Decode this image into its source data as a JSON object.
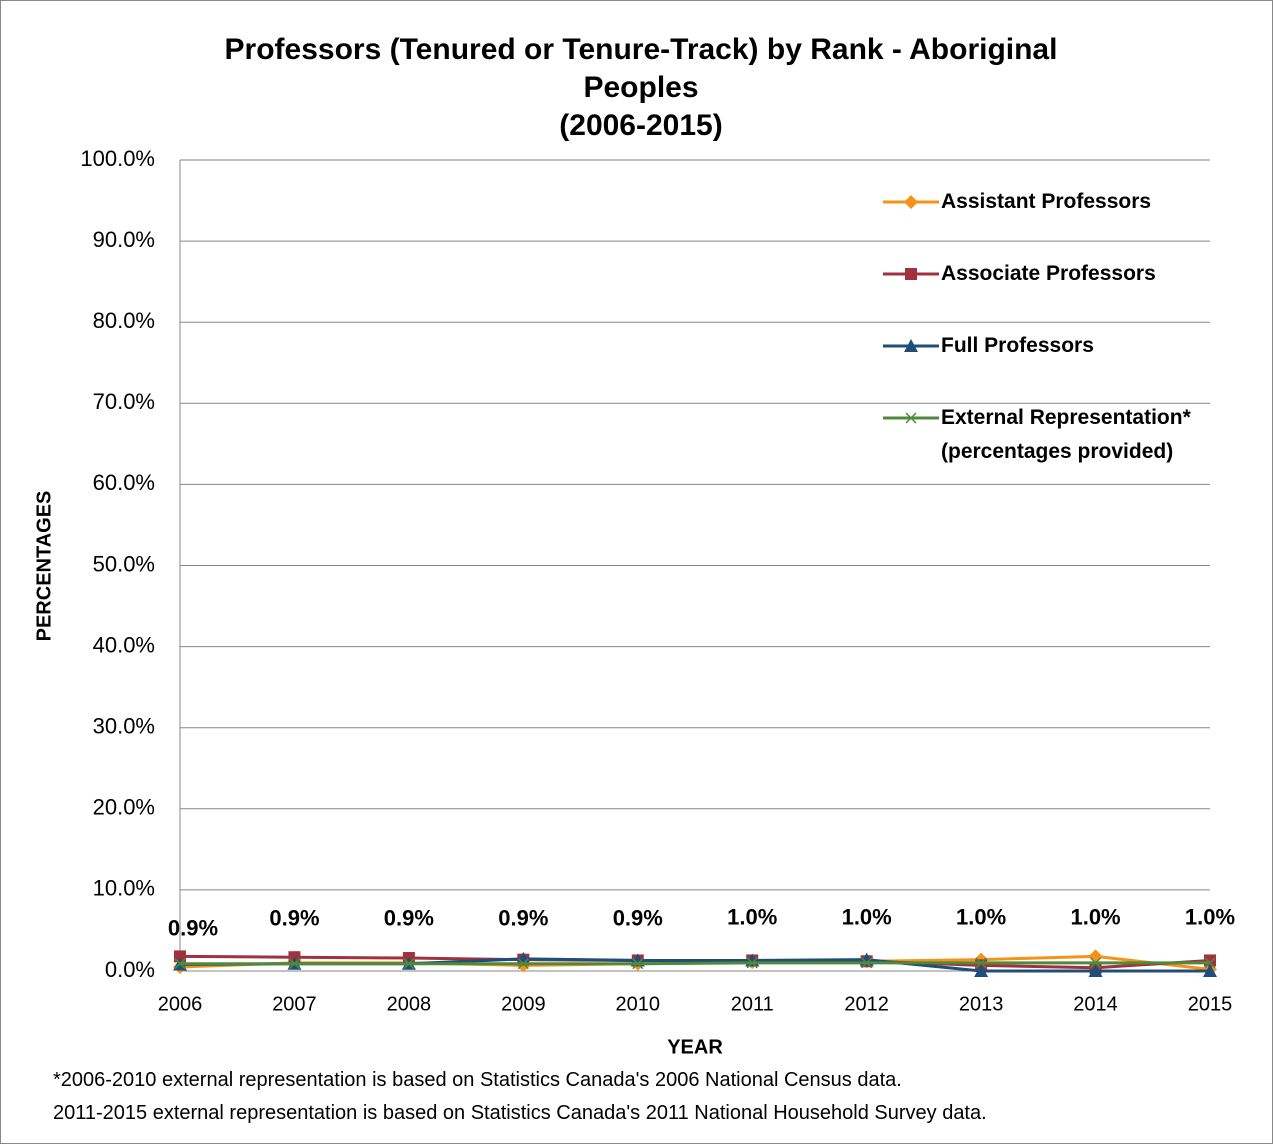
{
  "chart_data": {
    "type": "line",
    "title": "Professors (Tenured or Tenure-Track) by Rank - Aboriginal Peoples",
    "subtitle": "(2006-2015)",
    "x_label": "YEAR",
    "y_label": "PERCENTAGES",
    "x": [
      2006,
      2007,
      2008,
      2009,
      2010,
      2011,
      2012,
      2013,
      2014,
      2015
    ],
    "xlim": [
      2006,
      2015
    ],
    "ylim": [
      0,
      100
    ],
    "yticks": [
      {
        "value": 0,
        "label": "0.0%"
      },
      {
        "value": 10,
        "label": "10.0%"
      },
      {
        "value": 20,
        "label": "20.0%"
      },
      {
        "value": 30,
        "label": "30.0%"
      },
      {
        "value": 40,
        "label": "40.0%"
      },
      {
        "value": 50,
        "label": "50.0%"
      },
      {
        "value": 60,
        "label": "60.0%"
      },
      {
        "value": 70,
        "label": "70.0%"
      },
      {
        "value": 80,
        "label": "80.0%"
      },
      {
        "value": 90,
        "label": "90.0%"
      },
      {
        "value": 100,
        "label": "100.0%"
      }
    ],
    "grid": true,
    "legend": "right",
    "series": [
      {
        "name": "Assistant Professors",
        "color": "#f79218",
        "marker": "diamond",
        "values": [
          0.5,
          1.0,
          1.0,
          0.7,
          0.9,
          1.1,
          1.2,
          1.4,
          1.8,
          0.2
        ]
      },
      {
        "name": "Associate Professors",
        "color": "#a0313f",
        "marker": "square",
        "values": [
          1.8,
          1.7,
          1.6,
          1.4,
          1.3,
          1.3,
          1.2,
          0.7,
          0.4,
          1.3
        ]
      },
      {
        "name": "Full Professors",
        "color": "#1f4e79",
        "marker": "triangle",
        "values": [
          0.8,
          0.9,
          0.9,
          1.5,
          1.3,
          1.3,
          1.4,
          0.0,
          0.0,
          0.0
        ]
      },
      {
        "name": "External Representation* (percentages provided)",
        "color": "#4f8a3c",
        "marker": "x",
        "values": [
          0.9,
          0.9,
          0.9,
          0.9,
          0.9,
          1.0,
          1.0,
          1.0,
          1.0,
          1.0
        ],
        "value_labels": [
          "0.9%",
          "0.9%",
          "0.9%",
          "0.9%",
          "0.9%",
          "1.0%",
          "1.0%",
          "1.0%",
          "1.0%",
          "1.0%"
        ]
      }
    ],
    "notes": [
      "*2006-2010 external representation is based on Statistics Canada's 2006 National Census data.",
      "2011-2015 external representation is based on Statistics Canada's 2011 National Household Survey data."
    ]
  }
}
